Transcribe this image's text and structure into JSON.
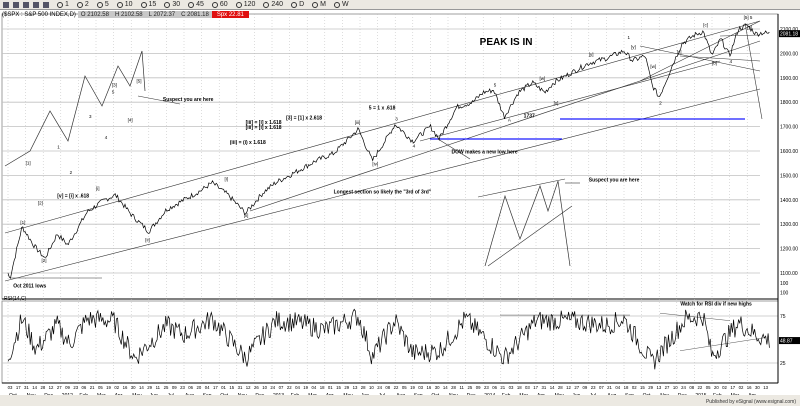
{
  "toolbar": {
    "icons": [
      "chart-icon",
      "grid-icon",
      "page-icon",
      "window-icon",
      "crosshair-icon"
    ],
    "intervals": [
      "1",
      "2",
      "5",
      "10",
      "15",
      "30",
      "45",
      "60",
      "120",
      "240",
      "D",
      "M",
      "W"
    ]
  },
  "header": {
    "symbol": "($SPX : S&P 500 INDEX,D)",
    "open": "O 2102.58",
    "high": "H 2102.58",
    "low": "L 2072.37",
    "close": "C 2081.18",
    "change": "Spx 22.81"
  },
  "status": "Published by eSignal (www.esignal.com)",
  "colors": {
    "price": "#000000",
    "rsi": "#000000",
    "blue_line": "#1a1aff",
    "change_bg": "#e01010",
    "grid": "#c0c0c0"
  },
  "chart_data": {
    "type": "line",
    "title": "PEAK IS IN",
    "price_axis": {
      "ylim": [
        1050,
        2130
      ],
      "ticks": [
        "1100.00",
        "1200.00",
        "1300.00",
        "1400.00",
        "1500.00",
        "1600.00",
        "1700.00",
        "1800.00",
        "1900.00",
        "2000.00",
        "2100.00"
      ],
      "last_value": "2081.18",
      "bottom_label": "100"
    },
    "x_note": "t = months since Oct 1 2011",
    "price_series": [
      [
        0,
        1100
      ],
      [
        0.1,
        1075
      ],
      [
        0.8,
        1290
      ],
      [
        1.5,
        1210
      ],
      [
        2.1,
        1160
      ],
      [
        2.8,
        1260
      ],
      [
        3.4,
        1215
      ],
      [
        4.5,
        1350
      ],
      [
        5.5,
        1400
      ],
      [
        6.1,
        1420
      ],
      [
        7,
        1340
      ],
      [
        8,
        1270
      ],
      [
        9,
        1360
      ],
      [
        10,
        1400
      ],
      [
        11,
        1440
      ],
      [
        11.6,
        1470
      ],
      [
        12.5,
        1420
      ],
      [
        13.5,
        1345
      ],
      [
        14.5,
        1430
      ],
      [
        15.2,
        1470
      ],
      [
        16.5,
        1520
      ],
      [
        17.5,
        1560
      ],
      [
        18.5,
        1590
      ],
      [
        19.5,
        1660
      ],
      [
        19.9,
        1690
      ],
      [
        20.7,
        1560
      ],
      [
        21.5,
        1650
      ],
      [
        22,
        1710
      ],
      [
        23,
        1640
      ],
      [
        24,
        1700
      ],
      [
        24.5,
        1650
      ],
      [
        25.5,
        1780
      ],
      [
        26.4,
        1800
      ],
      [
        27,
        1840
      ],
      [
        27.6,
        1850
      ],
      [
        28.2,
        1740
      ],
      [
        29,
        1840
      ],
      [
        29.8,
        1880
      ],
      [
        30.5,
        1840
      ],
      [
        31,
        1880
      ],
      [
        32,
        1920
      ],
      [
        33,
        1960
      ],
      [
        34,
        1980
      ],
      [
        35,
        2010
      ],
      [
        35.5,
        1970
      ],
      [
        36.2,
        1990
      ],
      [
        36.6,
        1870
      ],
      [
        37,
        1820
      ],
      [
        37.8,
        1960
      ],
      [
        38.3,
        2040
      ],
      [
        39,
        2075
      ],
      [
        39.5,
        2090
      ],
      [
        40,
        1990
      ],
      [
        40.5,
        2060
      ],
      [
        41,
        1990
      ],
      [
        41.5,
        2100
      ],
      [
        42,
        2115
      ],
      [
        42.5,
        2080
      ],
      [
        42.9,
        2085
      ],
      [
        43.3,
        2081
      ]
    ],
    "rsi": {
      "label": "RSI(14,C)",
      "current": "48.87",
      "ticks": [
        "100",
        "75",
        "25"
      ],
      "series": [
        [
          0,
          30
        ],
        [
          0.8,
          72
        ],
        [
          1.6,
          40
        ],
        [
          2.8,
          65
        ],
        [
          3.5,
          45
        ],
        [
          4.5,
          72
        ],
        [
          6,
          70
        ],
        [
          7.2,
          30
        ],
        [
          9,
          65
        ],
        [
          10,
          55
        ],
        [
          11.6,
          72
        ],
        [
          13.5,
          30
        ],
        [
          15.2,
          70
        ],
        [
          16.5,
          68
        ],
        [
          18,
          60
        ],
        [
          19.9,
          75
        ],
        [
          20.7,
          32
        ],
        [
          22,
          70
        ],
        [
          23,
          35
        ],
        [
          24.5,
          38
        ],
        [
          26,
          72
        ],
        [
          28.2,
          30
        ],
        [
          30,
          70
        ],
        [
          32,
          70
        ],
        [
          34,
          65
        ],
        [
          35,
          72
        ],
        [
          36.6,
          25
        ],
        [
          38.5,
          72
        ],
        [
          39.5,
          75
        ],
        [
          40,
          32
        ],
        [
          41.5,
          68
        ],
        [
          42.5,
          55
        ],
        [
          43.3,
          49
        ]
      ]
    },
    "x_tick_days": [
      "03",
      "17",
      "31",
      "14",
      "28",
      "12",
      "27",
      "09",
      "23",
      "06",
      "21",
      "05",
      "19",
      "02",
      "16",
      "30",
      "14",
      "29",
      "11",
      "25",
      "09",
      "23",
      "06",
      "20",
      "04",
      "17",
      "01",
      "15",
      "31",
      "12",
      "26",
      "10",
      "24",
      "07",
      "22",
      "04",
      "19",
      "04",
      "18",
      "01",
      "15",
      "29",
      "13",
      "28",
      "10",
      "24",
      "08",
      "22",
      "05",
      "19",
      "03",
      "16",
      "30",
      "14",
      "28",
      "11",
      "25",
      "09",
      "23",
      "06",
      "21",
      "03",
      "18",
      "03",
      "17",
      "31",
      "14",
      "28",
      "12",
      "27",
      "09",
      "23",
      "07",
      "21",
      "04",
      "18",
      "02",
      "15",
      "29",
      "13",
      "27",
      "10",
      "24",
      "08",
      "22",
      "05",
      "20",
      "02",
      "17",
      "02",
      "16",
      "30",
      "13"
    ],
    "x_month_labels": [
      [
        0,
        "Oct"
      ],
      [
        1,
        "Nov"
      ],
      [
        2,
        "Dec"
      ],
      [
        3,
        "2012"
      ],
      [
        4,
        "Feb"
      ],
      [
        5,
        "Mar"
      ],
      [
        6,
        "Apr"
      ],
      [
        7,
        "May"
      ],
      [
        8,
        "Jun"
      ],
      [
        9,
        "Jul"
      ],
      [
        10,
        "Aug"
      ],
      [
        11,
        "Sep"
      ],
      [
        12,
        "Oct"
      ],
      [
        13,
        "Nov"
      ],
      [
        14,
        "Dec"
      ],
      [
        15,
        "2013"
      ],
      [
        16,
        "Feb"
      ],
      [
        17,
        "Mar"
      ],
      [
        18,
        "Apr"
      ],
      [
        19,
        "May"
      ],
      [
        20,
        "Jun"
      ],
      [
        21,
        "Jul"
      ],
      [
        22,
        "Aug"
      ],
      [
        23,
        "Sep"
      ],
      [
        24,
        "Oct"
      ],
      [
        25,
        "Nov"
      ],
      [
        26,
        "Dec"
      ],
      [
        27,
        "2014"
      ],
      [
        28,
        "Feb"
      ],
      [
        29,
        "Mar"
      ],
      [
        30,
        "Apr"
      ],
      [
        31,
        "May"
      ],
      [
        32,
        "Jun"
      ],
      [
        33,
        "Jul"
      ],
      [
        34,
        "Aug"
      ],
      [
        35,
        "Sep"
      ],
      [
        36,
        "Oct"
      ],
      [
        37,
        "Nov"
      ],
      [
        38,
        "Dec"
      ],
      [
        39,
        "2015"
      ],
      [
        40,
        "Feb"
      ],
      [
        41,
        "Mar"
      ],
      [
        42,
        "Apr"
      ]
    ],
    "annotations": [
      {
        "text": "PEAK IS IN",
        "t": 26.8,
        "p": 2035,
        "big": true
      },
      {
        "text": "Suspect you are here",
        "t": 8.8,
        "p": 1805
      },
      {
        "text": "Suspect you are here",
        "t": 33,
        "p": 1475
      },
      {
        "text": "DOW makes a new low here",
        "t": 25.2,
        "p": 1590
      },
      {
        "text": "Longest section so likely the \"3rd of 3rd\"",
        "t": 18.5,
        "p": 1425
      },
      {
        "text": "Watch for RSI div if new highs",
        "t": 38.2,
        "p": null
      },
      {
        "text": "Oct 2011 lows",
        "t": 0.3,
        "p": 1040
      },
      {
        "text": "5 = 1 x .618",
        "t": 20.5,
        "p": 1770
      },
      {
        "text": "[3] = [1] x 2.618",
        "t": 15.8,
        "p": 1730
      },
      {
        "text": "[iii] = [i] x 1.618",
        "t": 13.5,
        "p": 1710
      },
      {
        "text": "[iii] = [i] x 1.618",
        "t": 13.5,
        "p": 1690
      },
      {
        "text": "(iii) = (i) x 1.618",
        "t": 12.6,
        "p": 1628
      },
      {
        "text": "[v] = [i] x .618",
        "t": 2.8,
        "p": 1410
      },
      {
        "text": "1737",
        "t": 29.3,
        "p": 1737
      }
    ],
    "wave_labels": [
      {
        "text": "[1]",
        "t": 1,
        "p": 1545
      },
      {
        "text": "[2]",
        "t": 1.7,
        "p": 1380
      },
      {
        "text": "1",
        "t": 2.8,
        "p": 1610
      },
      {
        "text": "2",
        "t": 3.5,
        "p": 1505
      },
      {
        "text": "3",
        "t": 4.6,
        "p": 1735
      },
      {
        "text": "4",
        "t": 5.5,
        "p": 1650
      },
      {
        "text": "[3]",
        "t": 5.9,
        "p": 1865
      },
      {
        "text": "5",
        "t": 5.9,
        "p": 1835
      },
      {
        "text": "[4]",
        "t": 6.8,
        "p": 1720
      },
      {
        "text": "[5]",
        "t": 7.3,
        "p": 1880
      },
      {
        "text": "[1]",
        "t": 0.7,
        "p": 1300
      },
      {
        "text": "[2]",
        "t": 1.9,
        "p": 1145
      },
      {
        "text": "[i]",
        "t": 5,
        "p": 1440
      },
      {
        "text": "[ii]",
        "t": 7.8,
        "p": 1230
      },
      {
        "text": "[i]",
        "t": 12.3,
        "p": 1480
      },
      {
        "text": "[ii]",
        "t": 13.4,
        "p": 1330
      },
      {
        "text": "[iii]",
        "t": 19.7,
        "p": 1710
      },
      {
        "text": "[iv]",
        "t": 20.7,
        "p": 1540
      },
      {
        "text": "3",
        "t": 22,
        "p": 1725
      },
      {
        "text": "4",
        "t": 23,
        "p": 1615
      },
      {
        "text": "5",
        "t": 27.6,
        "p": 1865
      },
      {
        "text": "A",
        "t": 28.4,
        "p": 1720
      },
      {
        "text": "[w]",
        "t": 30.2,
        "p": 1890
      },
      {
        "text": "[x]",
        "t": 31,
        "p": 1790
      },
      {
        "text": "[y]",
        "t": 33,
        "p": 1990
      },
      {
        "text": "1",
        "t": 35.2,
        "p": 2060
      },
      {
        "text": "2",
        "t": 37,
        "p": 1790
      },
      {
        "text": "[y]",
        "t": 35.4,
        "p": 2020
      },
      {
        "text": "[w]",
        "t": 36.5,
        "p": 1940
      },
      {
        "text": "[x]",
        "t": 38,
        "p": 2000
      },
      {
        "text": "[c]",
        "t": 39.5,
        "p": 2110
      },
      {
        "text": "[b]",
        "t": 40,
        "p": 1955
      },
      {
        "text": "4",
        "t": 41,
        "p": 1960
      },
      {
        "text": "[5] 5",
        "t": 41.8,
        "p": 2140
      },
      {
        "text": "[y]",
        "t": 42,
        "p": 2100
      }
    ]
  }
}
